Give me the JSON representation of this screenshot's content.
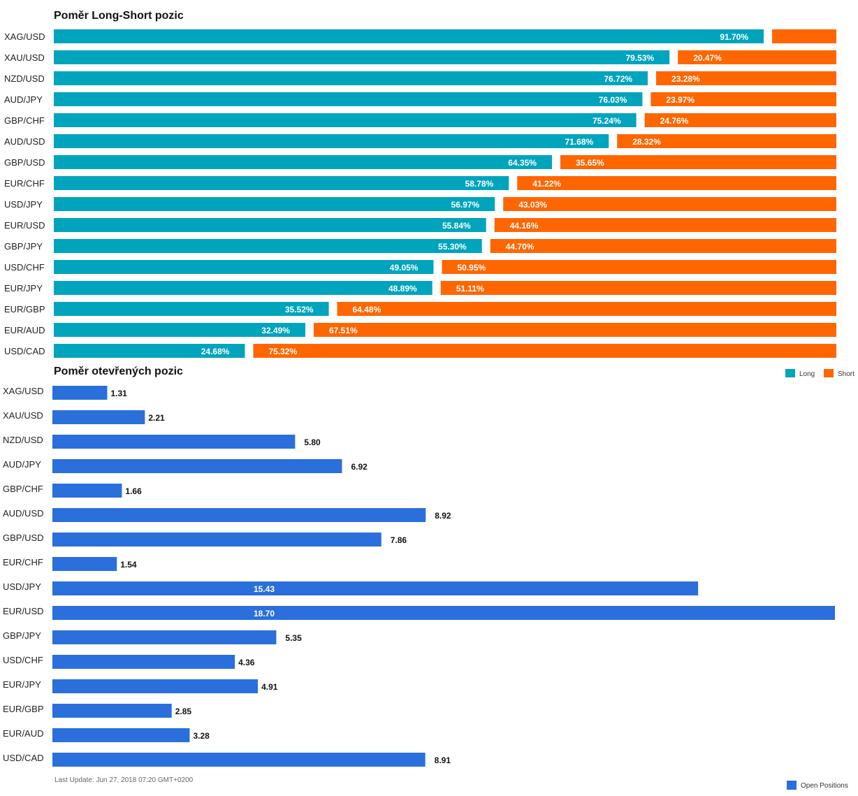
{
  "chart_data": [
    {
      "type": "bar",
      "title": "Poměr Long-Short pozic",
      "stacked": true,
      "orientation": "horizontal",
      "categories": [
        "XAG/USD",
        "XAU/USD",
        "NZD/USD",
        "AUD/JPY",
        "GBP/CHF",
        "AUD/USD",
        "GBP/USD",
        "EUR/CHF",
        "USD/JPY",
        "EUR/USD",
        "GBP/JPY",
        "USD/CHF",
        "EUR/JPY",
        "EUR/GBP",
        "EUR/AUD",
        "USD/CAD"
      ],
      "series": [
        {
          "name": "Long",
          "color": "#00a4bd",
          "values": [
            91.7,
            79.53,
            76.72,
            76.03,
            75.24,
            71.68,
            64.35,
            58.78,
            56.97,
            55.84,
            55.3,
            49.05,
            48.89,
            35.52,
            32.49,
            24.68
          ]
        },
        {
          "name": "Short",
          "color": "#ff6600",
          "values": [
            8.3,
            20.47,
            23.28,
            23.97,
            24.76,
            28.32,
            35.65,
            41.22,
            43.03,
            44.16,
            44.7,
            50.95,
            51.11,
            64.48,
            67.51,
            75.32
          ]
        }
      ],
      "labels": {
        "Long": [
          "91.70%",
          "79.53%",
          "76.72%",
          "76.03%",
          "75.24%",
          "71.68%",
          "64.35%",
          "58.78%",
          "56.97%",
          "55.84%",
          "55.30%",
          "49.05%",
          "48.89%",
          "35.52%",
          "32.49%",
          "24.68%"
        ],
        "Short": [
          "",
          "20.47%",
          "23.28%",
          "23.97%",
          "24.76%",
          "28.32%",
          "35.65%",
          "41.22%",
          "43.03%",
          "44.16%",
          "44.70%",
          "50.95%",
          "51.11%",
          "64.48%",
          "67.51%",
          "75.32%"
        ]
      },
      "legend": {
        "position": "bottom-right",
        "items": [
          {
            "name": "Long",
            "color": "#00a4bd"
          },
          {
            "name": "Short",
            "color": "#ff6600"
          }
        ]
      },
      "xlim": [
        0,
        100
      ]
    },
    {
      "type": "bar",
      "title": "Poměr otevřených pozic",
      "orientation": "horizontal",
      "categories": [
        "XAG/USD",
        "XAU/USD",
        "NZD/USD",
        "AUD/JPY",
        "GBP/CHF",
        "AUD/USD",
        "GBP/USD",
        "EUR/CHF",
        "USD/JPY",
        "EUR/USD",
        "GBP/JPY",
        "USD/CHF",
        "EUR/JPY",
        "EUR/GBP",
        "EUR/AUD",
        "USD/CAD"
      ],
      "series": [
        {
          "name": "Open Positions",
          "color": "#2a6fdb",
          "values": [
            1.31,
            2.21,
            5.8,
            6.92,
            1.66,
            8.92,
            7.86,
            1.54,
            15.43,
            18.7,
            5.35,
            4.36,
            4.91,
            2.85,
            3.28,
            8.91
          ]
        }
      ],
      "labels": [
        "1.31",
        "2.21",
        "5.80",
        "6.92",
        "1.66",
        "8.92",
        "7.86",
        "1.54",
        "15.43",
        "18.70",
        "5.35",
        "4.36",
        "4.91",
        "2.85",
        "3.28",
        "8.91"
      ],
      "legend": {
        "position": "bottom-right",
        "items": [
          {
            "name": "Open Positions",
            "color": "#2a6fdb"
          }
        ]
      },
      "xlim": [
        0,
        18.7
      ]
    }
  ],
  "titles": {
    "long_short": "Poměr Long-Short pozic",
    "open_positions": "Poměr otevřených pozic"
  },
  "footer": {
    "last_update": "Last Update: Jun 27, 2018 07:20 GMT+0200"
  }
}
